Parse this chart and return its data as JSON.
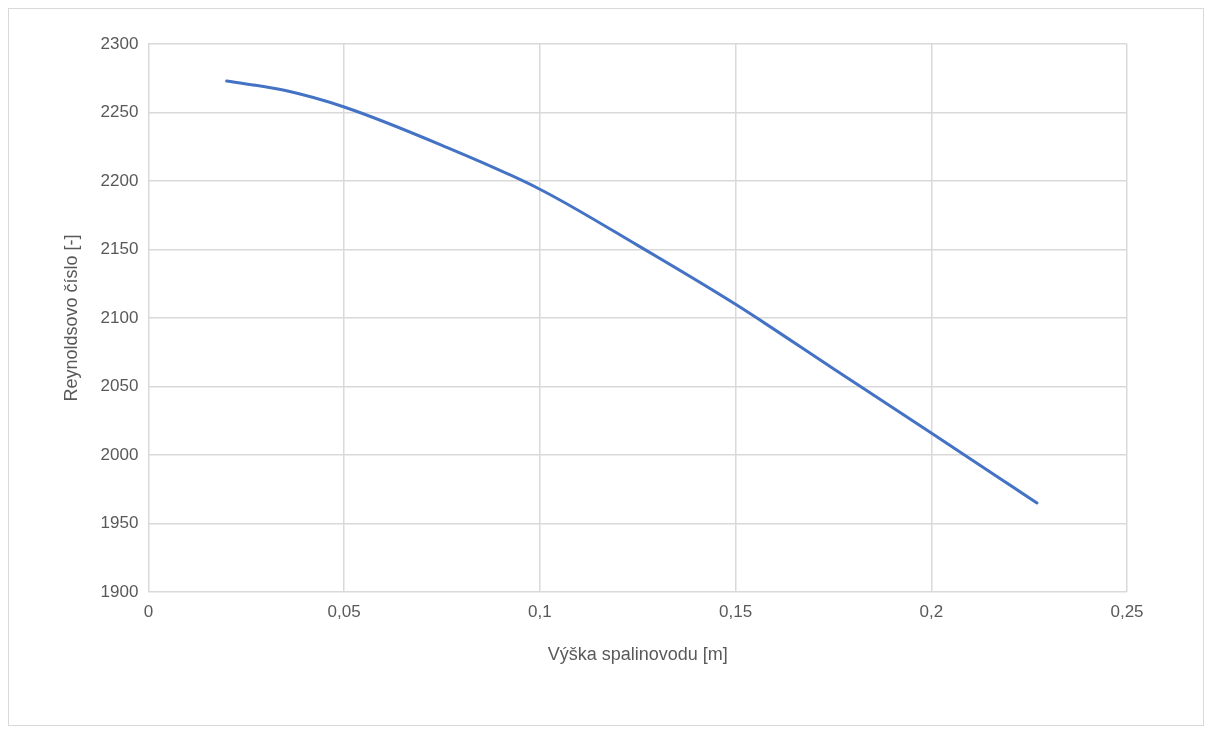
{
  "chart_data": {
    "type": "line",
    "xlabel": "Výška spalinovodu [m]",
    "ylabel": "Reynoldsovo číslo [-]",
    "x": [
      0.02,
      0.035,
      0.05,
      0.075,
      0.1,
      0.125,
      0.15,
      0.175,
      0.2,
      0.227
    ],
    "series": [
      {
        "color": "#4472c4",
        "values": [
          2273,
          2266,
          2254,
          2226,
          2194,
          2153,
          2110,
          2063,
          2016,
          1965
        ]
      }
    ],
    "xlim": [
      0,
      0.25
    ],
    "xticks": [
      {
        "value": 0,
        "label": "0"
      },
      {
        "value": 0.05,
        "label": "0,05"
      },
      {
        "value": 0.1,
        "label": "0,1"
      },
      {
        "value": 0.15,
        "label": "0,15"
      },
      {
        "value": 0.2,
        "label": "0,2"
      },
      {
        "value": 0.25,
        "label": "0,25"
      }
    ],
    "ylim": [
      1900,
      2300
    ],
    "yticks": [
      1900,
      1950,
      2000,
      2050,
      2100,
      2150,
      2200,
      2250,
      2300
    ],
    "grid": true,
    "legend": false,
    "marker": "none",
    "line_style": "solid"
  }
}
